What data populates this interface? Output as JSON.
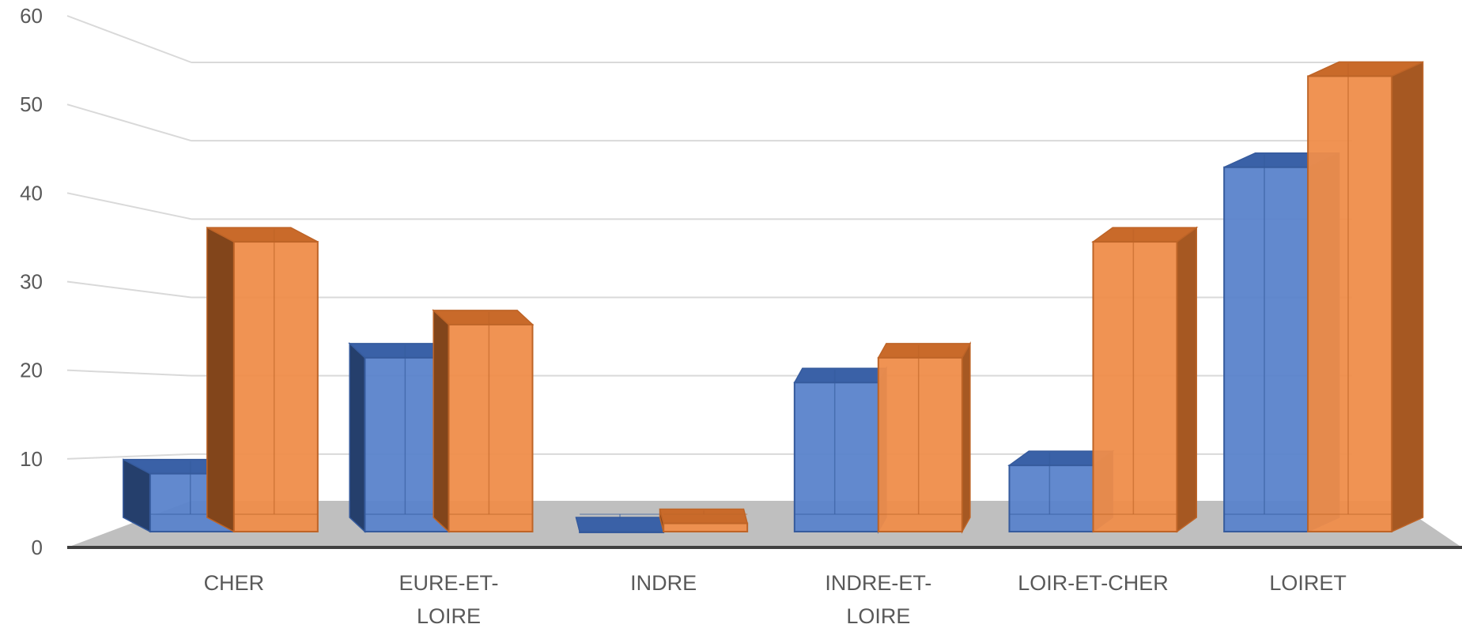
{
  "chart_data": {
    "type": "bar",
    "categories": [
      [
        "CHER"
      ],
      [
        "EURE-ET-",
        "LOIRE"
      ],
      [
        "INDRE"
      ],
      [
        "INDRE-ET-",
        "LOIRE"
      ],
      [
        "LOIR-ET-CHER"
      ],
      [
        "LOIRET"
      ]
    ],
    "series": [
      {
        "values": [
          7,
          21,
          0,
          18,
          8,
          44
        ],
        "color": "#4472C4"
      },
      {
        "values": [
          35,
          25,
          1,
          21,
          35,
          55
        ],
        "color": "#ED7D31"
      }
    ],
    "ylim": [
      0,
      60
    ],
    "yticks": [
      0,
      10,
      20,
      30,
      40,
      50,
      60
    ],
    "grid": true,
    "legend": "none",
    "style": "3d-clustered-column",
    "floor_color": "#BFBFBF"
  }
}
